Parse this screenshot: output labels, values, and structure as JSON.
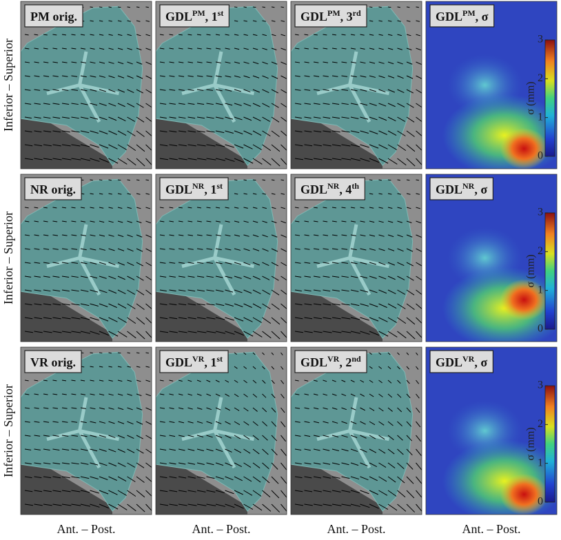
{
  "rows": [
    {
      "axis_label": "Inferior – Superior",
      "panels": [
        {
          "main": "PM orig."
        },
        {
          "main": "GDL",
          "sup": "PM",
          "suffix": ", 1",
          "suffix_sup": "st"
        },
        {
          "main": "GDL",
          "sup": "PM",
          "suffix": ", 3",
          "suffix_sup": "rd"
        },
        {
          "main": "GDL",
          "sup": "PM",
          "suffix": ", σ"
        }
      ],
      "colorbar": {
        "label": "σ (mm)",
        "lim": [
          0,
          3
        ],
        "ticks": [
          0,
          1,
          2,
          3
        ]
      }
    },
    {
      "axis_label": "Inferior – Superior",
      "panels": [
        {
          "main": "NR orig."
        },
        {
          "main": "GDL",
          "sup": "NR",
          "suffix": ", 1",
          "suffix_sup": "st"
        },
        {
          "main": "GDL",
          "sup": "NR",
          "suffix": ", 4",
          "suffix_sup": "th"
        },
        {
          "main": "GDL",
          "sup": "NR",
          "suffix": ", σ"
        }
      ],
      "colorbar": {
        "label": "σ (mm)",
        "lim": [
          0,
          3
        ],
        "ticks": [
          0,
          1,
          2,
          3
        ]
      }
    },
    {
      "axis_label": "Inferior – Superior",
      "panels": [
        {
          "main": "VR orig."
        },
        {
          "main": "GDL",
          "sup": "VR",
          "suffix": ", 1",
          "suffix_sup": "st"
        },
        {
          "main": "GDL",
          "sup": "VR",
          "suffix": ", 2",
          "suffix_sup": "nd"
        },
        {
          "main": "GDL",
          "sup": "VR",
          "suffix": ", σ"
        }
      ],
      "colorbar": {
        "label": "σ (mm)",
        "lim": [
          0,
          3
        ],
        "ticks": [
          0,
          1,
          2,
          3
        ]
      }
    }
  ],
  "column_labels": [
    "Ant. – Post.",
    "Ant. – Post.",
    "Ant. – Post.",
    "Ant. – Post."
  ]
}
